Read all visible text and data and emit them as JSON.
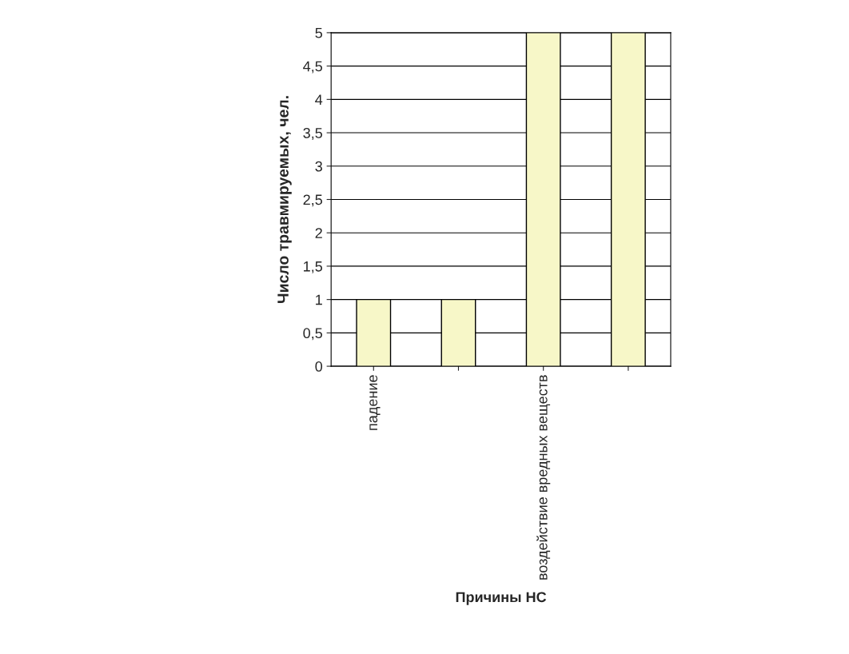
{
  "chart_data": {
    "type": "bar",
    "xlabel": "Причины НС",
    "ylabel": "Число травмируемых, чел.",
    "categories": [
      "падение",
      null,
      "воздействие вредных веществ",
      null
    ],
    "values": [
      1,
      1,
      5,
      5
    ],
    "color": "#ffffc0",
    "ylim": [
      0,
      5
    ],
    "yticks": [
      0,
      {
        "value": 0.5,
        "label": "0,5"
      },
      1,
      {
        "value": 1.5,
        "label": "1,5"
      },
      2,
      {
        "value": 2.5,
        "label": "2,5"
      },
      3,
      {
        "value": 3.5,
        "label": "3,5"
      },
      4,
      {
        "value": 4.5,
        "label": "4,5"
      },
      5
    ],
    "grid": "y",
    "legend": false
  }
}
